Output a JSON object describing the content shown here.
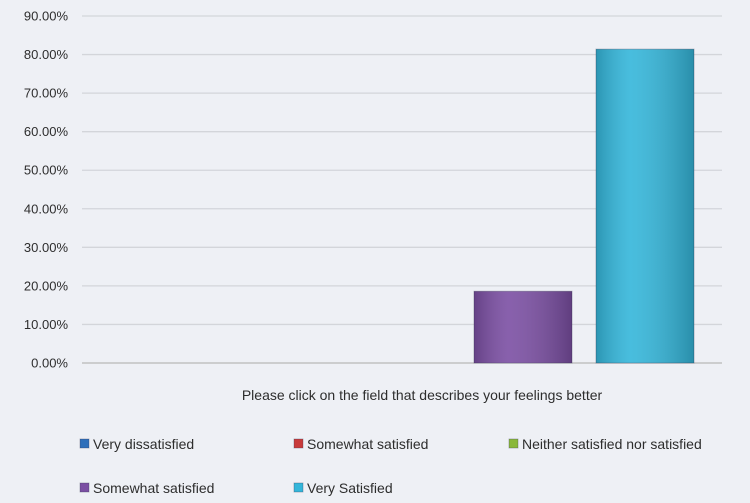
{
  "chart_data": {
    "type": "bar",
    "categories": [
      ""
    ],
    "series": [
      {
        "name": "Very dissatisfied",
        "values": [
          0
        ],
        "color": "#2e6fba"
      },
      {
        "name": "Somewhat satisfied",
        "values": [
          0
        ],
        "color": "#c83a3a"
      },
      {
        "name": "Neither satisfied nor satisfied",
        "values": [
          0
        ],
        "color": "#8ab83a"
      },
      {
        "name": "Somewhat satisfied",
        "values": [
          18.6
        ],
        "color": "#7b4fa3"
      },
      {
        "name": "Very Satisfied",
        "values": [
          81.4
        ],
        "color": "#34b6da"
      }
    ],
    "xlabel": "Please click on the field that describes your feelings better",
    "ylabel": "",
    "ylim": [
      0,
      90
    ],
    "yticks": [
      "0.00%",
      "10.00%",
      "20.00%",
      "30.00%",
      "40.00%",
      "50.00%",
      "60.00%",
      "70.00%",
      "80.00%",
      "90.00%"
    ],
    "grid": true,
    "legend_position": "bottom"
  }
}
